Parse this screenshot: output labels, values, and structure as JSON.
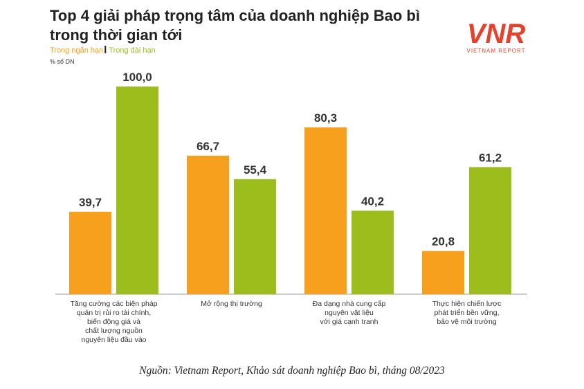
{
  "chart_data": {
    "type": "bar",
    "title": "Top 4 giải pháp trọng tâm của doanh nghiệp Bao bì trong thời gian tới",
    "unit_label": "% số DN",
    "categories": [
      "Tăng cường các biện pháp\nquản trị rủi ro tài chính,\nbiến động giá và\nchất lượng nguồn\nnguyên liệu đầu vào",
      "Mở rộng thị trường",
      "Đa dạng nhà cung cấp\nnguyên vật liệu\nvới giá cạnh tranh",
      "Thực hiện chiến lược\nphát triển bền vững,\nbảo vệ môi trường"
    ],
    "series": [
      {
        "name": "Trong ngắn hạn",
        "color": "#f6a01e",
        "values": [
          39.7,
          66.7,
          80.3,
          20.8
        ],
        "value_labels": [
          "39,7",
          "66,7",
          "80,3",
          "20,8"
        ]
      },
      {
        "name": "Trong dài hạn",
        "color": "#9dbd1c",
        "values": [
          100.0,
          55.4,
          40.2,
          61.2
        ],
        "value_labels": [
          "100,0",
          "55,4",
          "40,2",
          "61,2"
        ]
      }
    ]
  },
  "logo": {
    "mark": "VNR",
    "text": "VIETNAM REPORT"
  },
  "source": "Nguồn: Vietnam Report, Khảo sát doanh nghiệp Bao bì, tháng 08/2023"
}
